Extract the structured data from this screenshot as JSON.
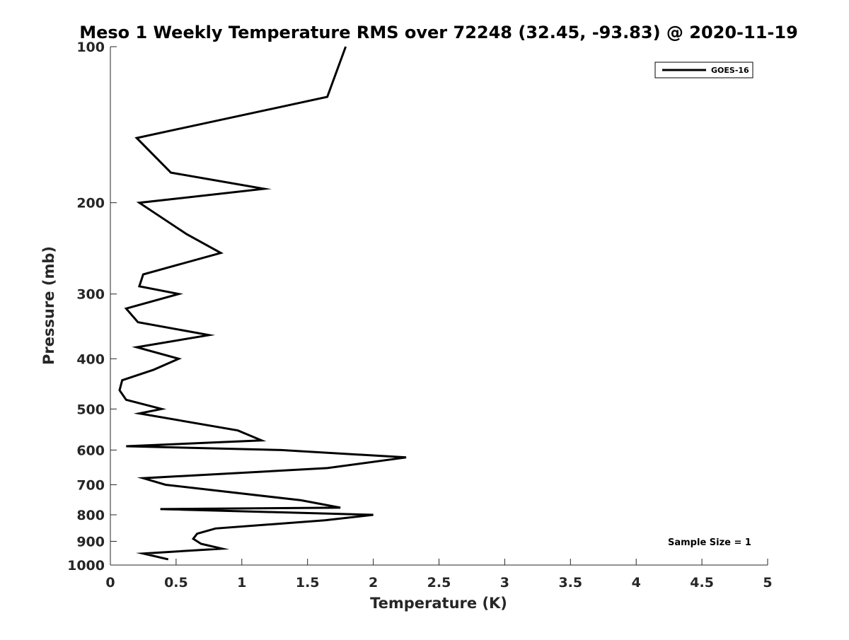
{
  "chart_data": {
    "type": "line",
    "title": "Meso 1 Weekly Temperature RMS over 72248 (32.45, -93.83) @ 2020-11-19",
    "xlabel": "Temperature (K)",
    "ylabel": "Pressure (mb)",
    "xlim": [
      0,
      5
    ],
    "ylim": [
      100,
      1000
    ],
    "y_scale": "log",
    "y_reversed": true,
    "x_ticks": [
      "0",
      "0.5",
      "1",
      "1.5",
      "2",
      "2.5",
      "3",
      "3.5",
      "4",
      "4.5",
      "5"
    ],
    "y_ticks": [
      "100",
      "200",
      "300",
      "400",
      "500",
      "600",
      "700",
      "800",
      "900",
      "1000"
    ],
    "grid": false,
    "legend_position": "top-right",
    "annotation": "Sample Size = 1",
    "series": [
      {
        "name": "GOES-16",
        "color": "#000000",
        "points": [
          [
            1.79,
            100
          ],
          [
            1.65,
            125
          ],
          [
            0.2,
            150
          ],
          [
            0.46,
            175
          ],
          [
            1.17,
            188
          ],
          [
            0.22,
            200
          ],
          [
            0.58,
            230
          ],
          [
            0.84,
            250
          ],
          [
            0.25,
            275
          ],
          [
            0.22,
            290
          ],
          [
            0.52,
            300
          ],
          [
            0.12,
            320
          ],
          [
            0.21,
            340
          ],
          [
            0.75,
            360
          ],
          [
            0.2,
            380
          ],
          [
            0.52,
            400
          ],
          [
            0.33,
            420
          ],
          [
            0.09,
            440
          ],
          [
            0.07,
            460
          ],
          [
            0.12,
            480
          ],
          [
            0.39,
            500
          ],
          [
            0.22,
            510
          ],
          [
            0.97,
            550
          ],
          [
            1.15,
            575
          ],
          [
            0.12,
            590
          ],
          [
            1.3,
            600
          ],
          [
            2.25,
            620
          ],
          [
            1.65,
            650
          ],
          [
            0.25,
            680
          ],
          [
            0.42,
            700
          ],
          [
            1.45,
            750
          ],
          [
            1.75,
            775
          ],
          [
            0.38,
            780
          ],
          [
            1.2,
            790
          ],
          [
            2.0,
            800
          ],
          [
            1.63,
            820
          ],
          [
            0.8,
            850
          ],
          [
            0.66,
            870
          ],
          [
            0.63,
            890
          ],
          [
            0.69,
            910
          ],
          [
            0.85,
            930
          ],
          [
            0.25,
            950
          ],
          [
            0.44,
            975
          ]
        ]
      }
    ]
  }
}
